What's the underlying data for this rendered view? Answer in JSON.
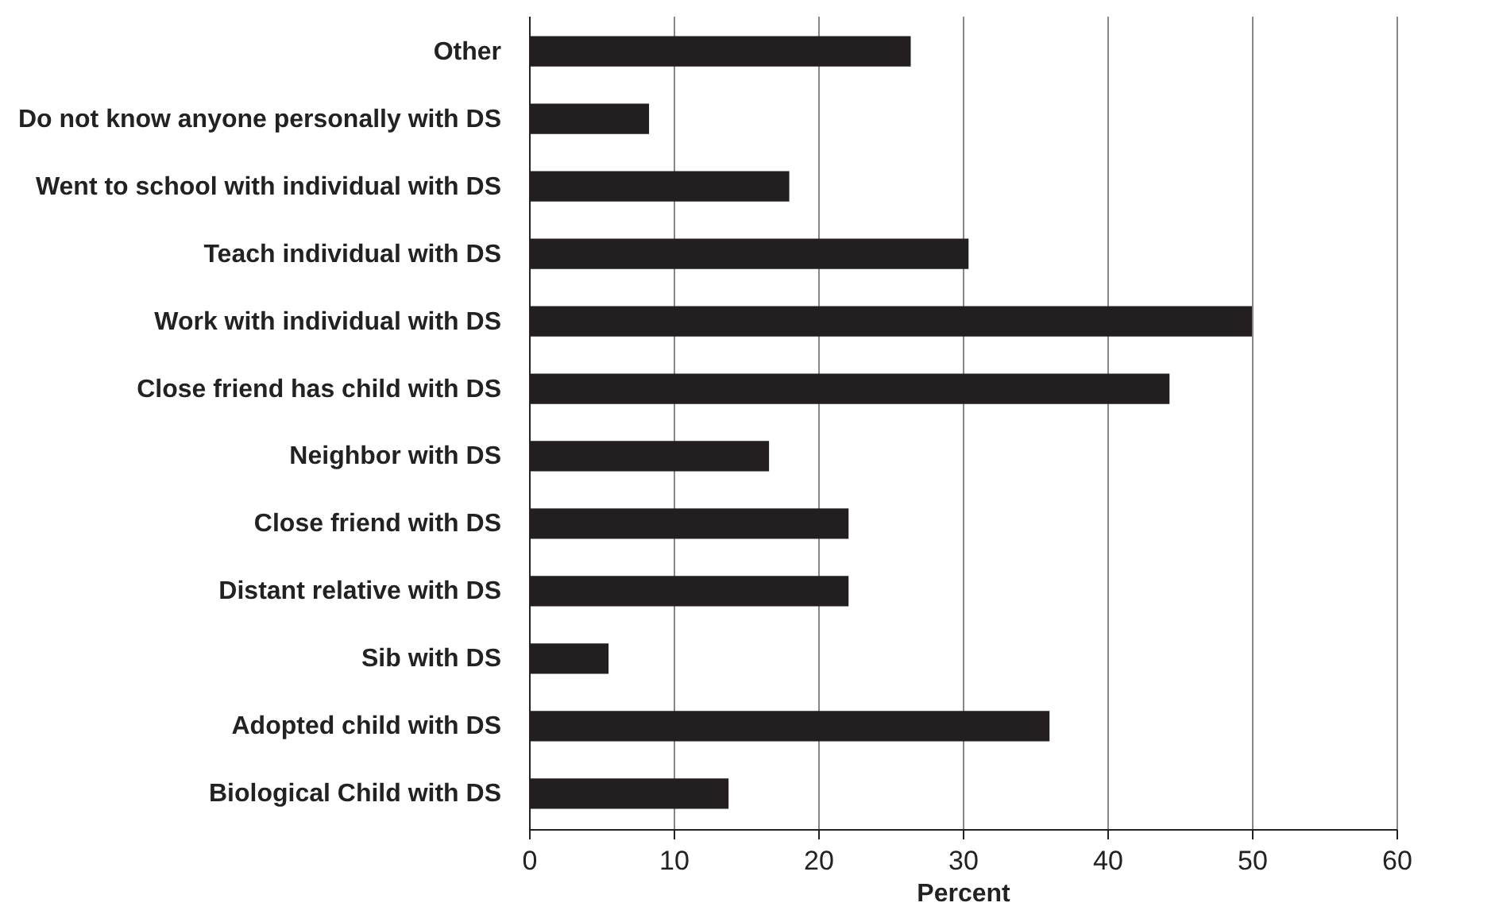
{
  "chart_data": {
    "type": "bar",
    "orientation": "horizontal",
    "xlabel": "Percent",
    "categories": [
      "Other",
      "Do not know anyone personally with DS",
      "Went to school with individual with DS",
      "Teach individual with DS",
      "Work with individual with DS",
      "Close friend has child with DS",
      "Neighbor with DS",
      "Close friend with DS",
      "Distant relative with DS",
      "Sib with DS",
      "Adopted child with DS",
      "Biological Child with DS"
    ],
    "values": [
      26.4,
      8.3,
      18.0,
      30.4,
      50,
      44.3,
      16.6,
      22.1,
      22.1,
      5.5,
      36.0,
      13.8
    ],
    "color": "#231f20",
    "xlim": [
      0,
      60
    ],
    "xticks": [
      0,
      10,
      20,
      30,
      40,
      50,
      60
    ],
    "grid": "x"
  }
}
